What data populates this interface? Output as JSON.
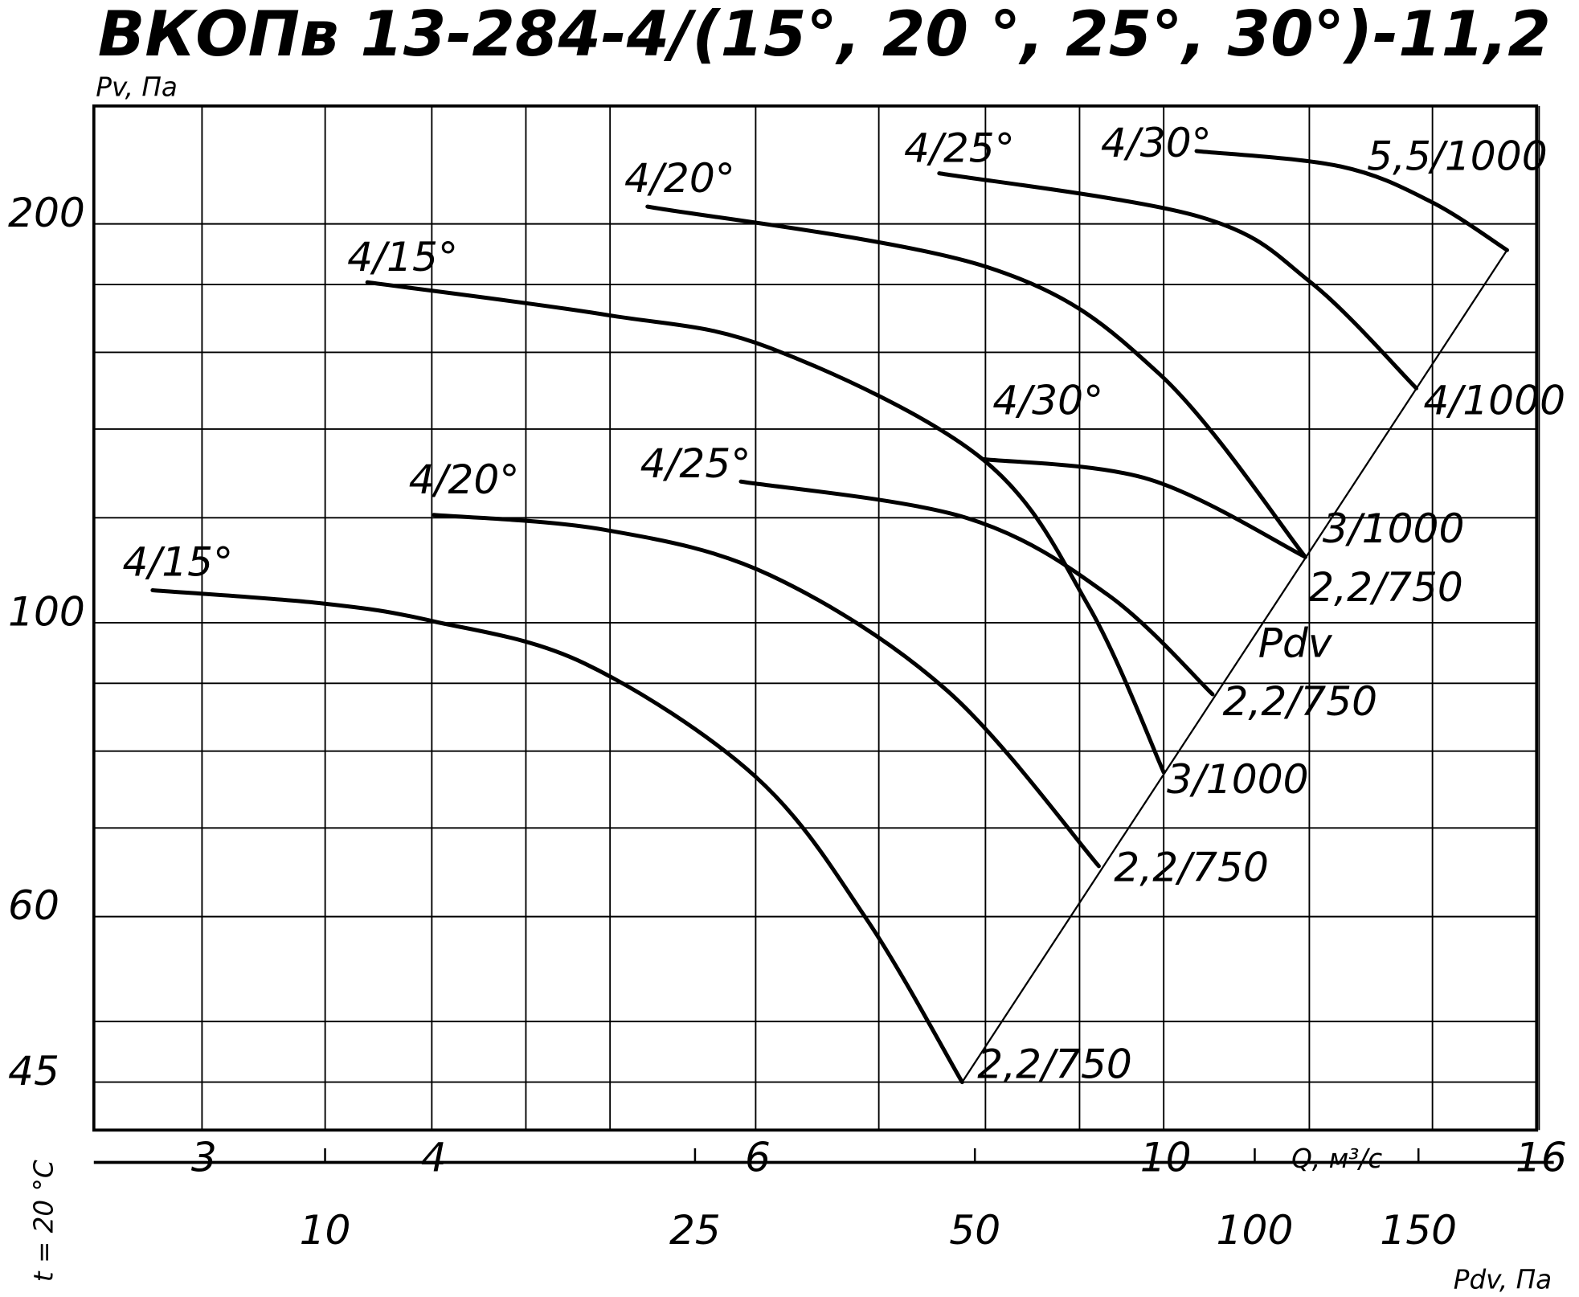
{
  "chart_data": {
    "type": "line",
    "title": "ВКОПв 13-284-4/(15°, 20 °, 25°, 30°)-11,2",
    "ylabel": "Pv, Па",
    "xlabel": "Q, м³/с",
    "x2label": "Pdv, Па",
    "note": "t = 20 °C",
    "xscale": "log",
    "yscale": "log",
    "grid": true,
    "xlim": [
      2.62,
      15.95
    ],
    "xticks": [
      3,
      4,
      6,
      10,
      16
    ],
    "x_grid": [
      3.5,
      4.5,
      5,
      7,
      8,
      9,
      12,
      14
    ],
    "ylim": [
      41.4,
      245.5
    ],
    "yticks": [
      45,
      60,
      100,
      200
    ],
    "y_grid": [
      50,
      70,
      80,
      90,
      120,
      140,
      160,
      180
    ],
    "x2lim": [
      5.64,
      201
    ],
    "x2ticks": [
      10,
      25,
      50,
      100,
      150
    ],
    "series": [
      {
        "name": "4/15°",
        "motor": "2,2/750",
        "color": "#000000",
        "x": [
          2.82,
          3.49,
          4.0,
          4.84,
          6.0,
          6.89,
          7.77
        ],
        "values": [
          105.8,
          103.4,
          100.3,
          93.2,
          76.5,
          59.8,
          45.0
        ]
      },
      {
        "name": "4/20°",
        "motor": "2,2/750",
        "color": "#000000",
        "x": [
          4.01,
          4.97,
          6.11,
          7.63,
          9.22
        ],
        "values": [
          120.6,
          117.5,
          108.6,
          88.8,
          65.5
        ]
      },
      {
        "name": "4/25°",
        "motor": "2,2/750",
        "color": "#000000",
        "x": [
          5.89,
          7.81,
          9.33,
          10.63
        ],
        "values": [
          127.8,
          120.0,
          104.9,
          88.3
        ]
      },
      {
        "name": "4/30°",
        "motor": "2,2/750",
        "color": "#000000",
        "x": [
          7.97,
          9.82,
          11.94
        ],
        "values": [
          132.9,
          128.3,
          112.1
        ]
      },
      {
        "name": "4/15°",
        "motor": "3/1000",
        "color": "#000000",
        "x": [
          3.69,
          4.97,
          6.11,
          7.97,
          9.1,
          10.0
        ],
        "values": [
          180.7,
          170.8,
          161.2,
          132.9,
          103.0,
          77.1
        ]
      },
      {
        "name": "4/20°",
        "motor": "3/1000",
        "color": "#000000",
        "x": [
          5.24,
          8.02,
          9.94,
          11.94
        ],
        "values": [
          206.1,
          185.5,
          154.2,
          112.1
        ]
      },
      {
        "name": "4/25°",
        "motor": "4/1000",
        "color": "#000000",
        "x": [
          7.55,
          10.46,
          12.02,
          13.72
        ],
        "values": [
          218.4,
          202.5,
          180.7,
          150.3
        ]
      },
      {
        "name": "4/30°",
        "motor": "5,5/1000",
        "color": "#000000",
        "x": [
          10.42,
          12.48,
          13.98,
          15.37
        ],
        "values": [
          227.0,
          221.0,
          207.8,
          191.1
        ]
      },
      {
        "name": "Pdv",
        "color": "#000000",
        "x": [
          7.77,
          15.37
        ],
        "values": [
          45.0,
          191.1
        ]
      }
    ]
  }
}
